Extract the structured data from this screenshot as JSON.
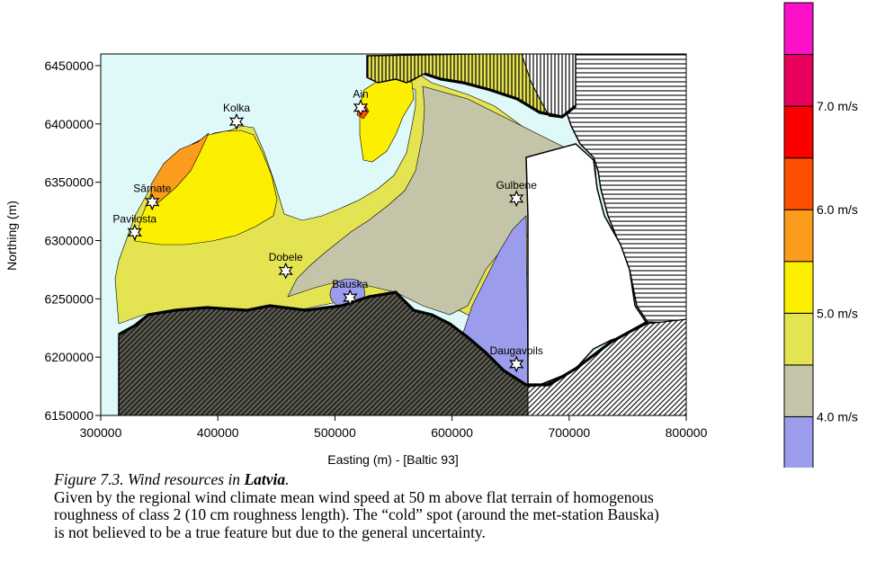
{
  "map": {
    "x_axis": {
      "title": "Easting (m) - [Baltic 93]",
      "ticks": [
        {
          "value": 300000,
          "label": "300000"
        },
        {
          "value": 400000,
          "label": "400000"
        },
        {
          "value": 500000,
          "label": "500000"
        },
        {
          "value": 600000,
          "label": "600000"
        },
        {
          "value": 700000,
          "label": "700000"
        },
        {
          "value": 800000,
          "label": "800000"
        }
      ],
      "range": [
        300000,
        800000
      ]
    },
    "y_axis": {
      "title": "Northing (m)",
      "ticks": [
        {
          "value": 6150000,
          "label": "6150000"
        },
        {
          "value": 6200000,
          "label": "6200000"
        },
        {
          "value": 6250000,
          "label": "6250000"
        },
        {
          "value": 6300000,
          "label": "6300000"
        },
        {
          "value": 6350000,
          "label": "6350000"
        },
        {
          "value": 6400000,
          "label": "6400000"
        },
        {
          "value": 6450000,
          "label": "6450000"
        }
      ],
      "range": [
        6150000,
        6460000
      ]
    },
    "stations": [
      {
        "name": "Kolka",
        "e": 416000,
        "n": 6402000
      },
      {
        "name": "Ainaži",
        "label": "Ain",
        "e": 522000,
        "n": 6414000
      },
      {
        "name": "Sārnate",
        "label": "Sārnate",
        "e": 344000,
        "n": 6333000
      },
      {
        "name": "Pavilosta",
        "label": "Pavilosta",
        "e": 329000,
        "n": 6307000
      },
      {
        "name": "Dobele",
        "e": 458000,
        "n": 6274000
      },
      {
        "name": "Bauska",
        "e": 513000,
        "n": 6251000
      },
      {
        "name": "Gulbene",
        "e": 655000,
        "n": 6336000
      },
      {
        "name": "Daugavpils",
        "e": 655000,
        "n": 6194000
      }
    ],
    "colors": {
      "sea": "#dff8f8",
      "c35": "#9c9cec",
      "c40": "#c4c4a8",
      "c45": "#e4e452",
      "c50": "#fcf000",
      "c55": "#fc9c1c",
      "c60": "#fc5000",
      "c65": "#fc0000",
      "c70": "#e8005c",
      "c75": "#fc10c8"
    }
  },
  "colorbar": {
    "labels": [
      {
        "value": 4.0,
        "text": "4.0 m/s"
      },
      {
        "value": 5.0,
        "text": "5.0 m/s"
      },
      {
        "value": 6.0,
        "text": "6.0 m/s"
      },
      {
        "value": 7.0,
        "text": "7.0 m/s"
      }
    ],
    "bins": [
      {
        "from": 3.5,
        "to": 4.0,
        "color": "#9c9cec"
      },
      {
        "from": 4.0,
        "to": 4.5,
        "color": "#c4c4a8"
      },
      {
        "from": 4.5,
        "to": 5.0,
        "color": "#e4e452"
      },
      {
        "from": 5.0,
        "to": 5.5,
        "color": "#fcf000"
      },
      {
        "from": 5.5,
        "to": 6.0,
        "color": "#fc9c1c"
      },
      {
        "from": 6.0,
        "to": 6.5,
        "color": "#fc5000"
      },
      {
        "from": 6.5,
        "to": 7.0,
        "color": "#fc0000"
      },
      {
        "from": 7.0,
        "to": 7.5,
        "color": "#e8005c"
      },
      {
        "from": 7.5,
        "to": 8.0,
        "color": "#fc10c8"
      }
    ]
  },
  "caption": {
    "figure_prefix": "Figure 7.3. Wind resources in ",
    "country": "Latvia",
    "figure_suffix": ".",
    "line1": "Given by the regional wind climate mean wind speed at 50 m above flat terrain of homogenous",
    "line2": "roughness of class 2 (10 cm roughness length). The “cold” spot (around the met-station Bauska)",
    "line3": "is not believed to be a true feature but due to the general uncertainty."
  }
}
